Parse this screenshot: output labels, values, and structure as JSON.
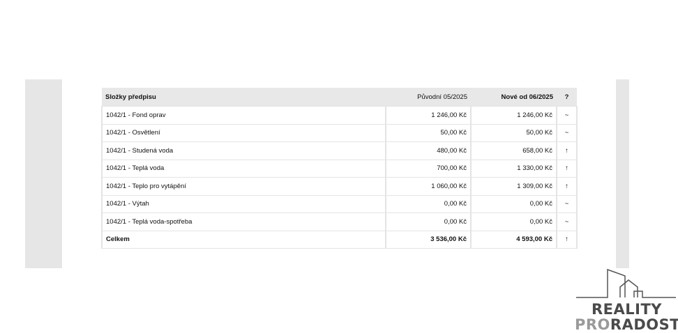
{
  "table": {
    "headers": {
      "name": "Složky předpisu",
      "orig": "Původní 05/2025",
      "new": "Nové od 06/2025",
      "flag": "?"
    },
    "rows": [
      {
        "name": "1042/1 - Fond oprav",
        "orig": "1 246,00 Kč",
        "new": "1 246,00 Kč",
        "flag": "~"
      },
      {
        "name": "1042/1 - Osvětlení",
        "orig": "50,00 Kč",
        "new": "50,00 Kč",
        "flag": "~"
      },
      {
        "name": "1042/1 - Studená voda",
        "orig": "480,00 Kč",
        "new": "658,00 Kč",
        "flag": "↑"
      },
      {
        "name": "1042/1 - Teplá voda",
        "orig": "700,00 Kč",
        "new": "1 330,00 Kč",
        "flag": "↑"
      },
      {
        "name": "1042/1 - Teplo pro vytápění",
        "orig": "1 060,00 Kč",
        "new": "1 309,00 Kč",
        "flag": "↑"
      },
      {
        "name": "1042/1 - Výtah",
        "orig": "0,00 Kč",
        "new": "0,00 Kč",
        "flag": "~"
      },
      {
        "name": "1042/1 - Teplá voda-spotřeba",
        "orig": "0,00 Kč",
        "new": "0,00 Kč",
        "flag": "~"
      }
    ],
    "total": {
      "name": "Celkem",
      "orig": "3 536,00 Kč",
      "new": "4 593,00 Kč",
      "flag": "↑"
    }
  },
  "logo": {
    "line1": "REALITY",
    "line2a": "PRO",
    "line2b": "RADOST"
  }
}
